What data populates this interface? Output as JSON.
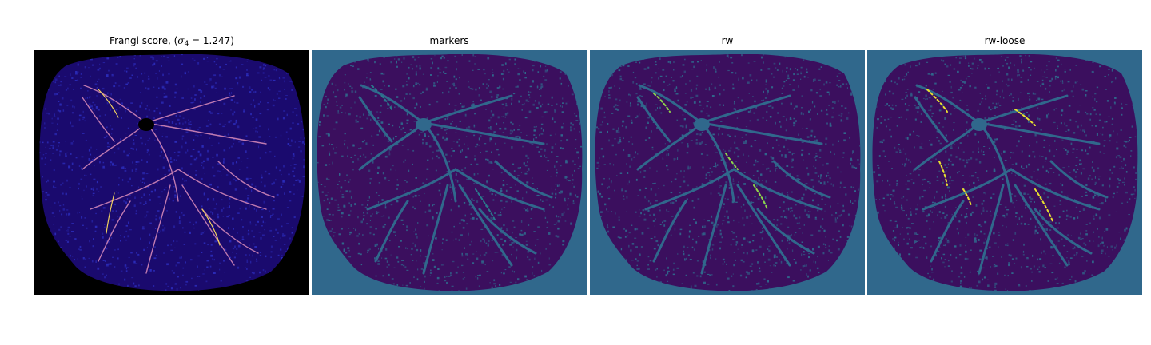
{
  "figure": {
    "panels": [
      {
        "id": "frangi",
        "title_prefix": "Frangi score, (",
        "title_symbol": "σ",
        "title_subscript": "4",
        "title_suffix": " = 1.247)",
        "background": "#000000",
        "fill": "#1a0a6e",
        "speckle": "#2b2bb8",
        "vessel": "#c07ab0",
        "vessel_strong": "#f0d060"
      },
      {
        "id": "markers",
        "title": "markers",
        "background": "#30688c",
        "fill": "#3b0f5e",
        "speckle": "#30688c",
        "vessel": "#30688c",
        "vessel_strong": "#2a7a8c"
      },
      {
        "id": "rw",
        "title": "rw",
        "background": "#30688c",
        "fill": "#3b0f5e",
        "speckle": "#30688c",
        "vessel": "#30688c",
        "vessel_strong": "#8fd44a"
      },
      {
        "id": "rw-loose",
        "title": "rw-loose",
        "background": "#30688c",
        "fill": "#3b0f5e",
        "speckle": "#30688c",
        "vessel": "#30688c",
        "vessel_strong": "#e8e030"
      }
    ]
  }
}
